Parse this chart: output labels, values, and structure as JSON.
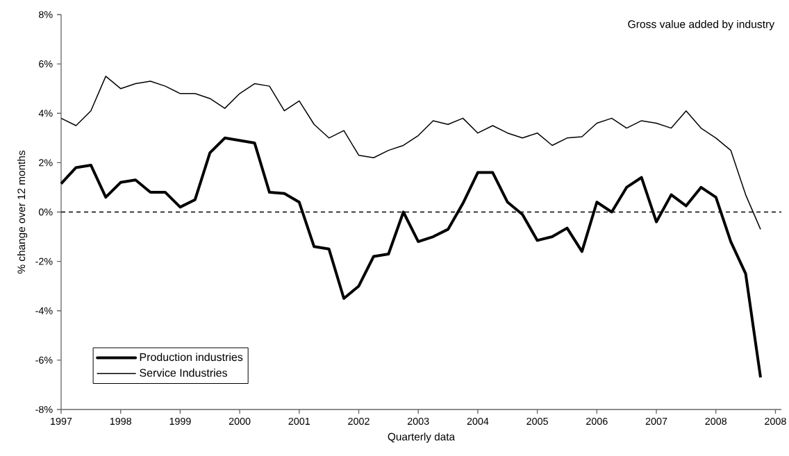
{
  "chart_data": {
    "type": "line",
    "title": "Gross value added by industry",
    "xlabel": "Quarterly data",
    "ylabel": "% change over 12 months",
    "categories": [
      "1997",
      null,
      null,
      null,
      "1998",
      null,
      null,
      null,
      "1999",
      null,
      null,
      null,
      "2000",
      null,
      null,
      null,
      "2001",
      null,
      null,
      null,
      "2002",
      null,
      null,
      null,
      "2003",
      null,
      null,
      null,
      "2004",
      null,
      null,
      null,
      "2005",
      null,
      null,
      null,
      "2006",
      null,
      null,
      null,
      "2007",
      null,
      null,
      null,
      "2008",
      null,
      null,
      null,
      "2008"
    ],
    "series": [
      {
        "name": "Production industries",
        "color": "#000000",
        "values": [
          1.15,
          1.8,
          1.9,
          0.6,
          1.2,
          1.3,
          0.8,
          0.8,
          0.2,
          0.5,
          2.4,
          3.0,
          2.9,
          2.8,
          0.8,
          0.75,
          0.4,
          -1.4,
          -1.5,
          -3.5,
          -3.0,
          -1.8,
          -1.7,
          0.0,
          -1.2,
          -1.0,
          -0.7,
          0.35,
          1.6,
          1.6,
          0.4,
          -0.1,
          -1.15,
          -1.0,
          -0.65,
          -1.6,
          0.4,
          0.0,
          1.0,
          1.4,
          -0.4,
          0.7,
          0.25,
          1.0,
          0.6,
          -1.2,
          -2.5,
          -6.7,
          null
        ]
      },
      {
        "name": "Service Industries",
        "color": "#000000",
        "values": [
          3.8,
          3.5,
          4.1,
          5.5,
          5.0,
          5.2,
          5.3,
          5.1,
          4.8,
          4.8,
          4.6,
          4.2,
          4.8,
          5.2,
          5.1,
          4.1,
          4.5,
          3.55,
          3.0,
          3.3,
          2.3,
          2.2,
          2.5,
          2.7,
          3.1,
          3.7,
          3.55,
          3.8,
          3.2,
          3.5,
          3.2,
          3.0,
          3.2,
          2.7,
          3.0,
          3.05,
          3.6,
          3.8,
          3.4,
          3.7,
          3.6,
          3.4,
          4.1,
          3.4,
          3.0,
          2.5,
          0.7,
          -0.7,
          null
        ]
      }
    ],
    "ylim": [
      -8,
      8
    ],
    "yticks": [
      {
        "value": -8,
        "label": "-8%"
      },
      {
        "value": -6,
        "label": "-6%"
      },
      {
        "value": -4,
        "label": "-4%"
      },
      {
        "value": -2,
        "label": "-2%"
      },
      {
        "value": 0,
        "label": "0%"
      },
      {
        "value": 2,
        "label": "2%"
      },
      {
        "value": 4,
        "label": "4%"
      },
      {
        "value": 6,
        "label": "6%"
      },
      {
        "value": 8,
        "label": "8%"
      }
    ],
    "ref_lines": [
      {
        "axis": "y",
        "value": 0,
        "color": "#000000",
        "line_style": "dashed"
      }
    ],
    "legend": "bottom left",
    "marker": "none",
    "line_style": "solid",
    "grid": false
  }
}
